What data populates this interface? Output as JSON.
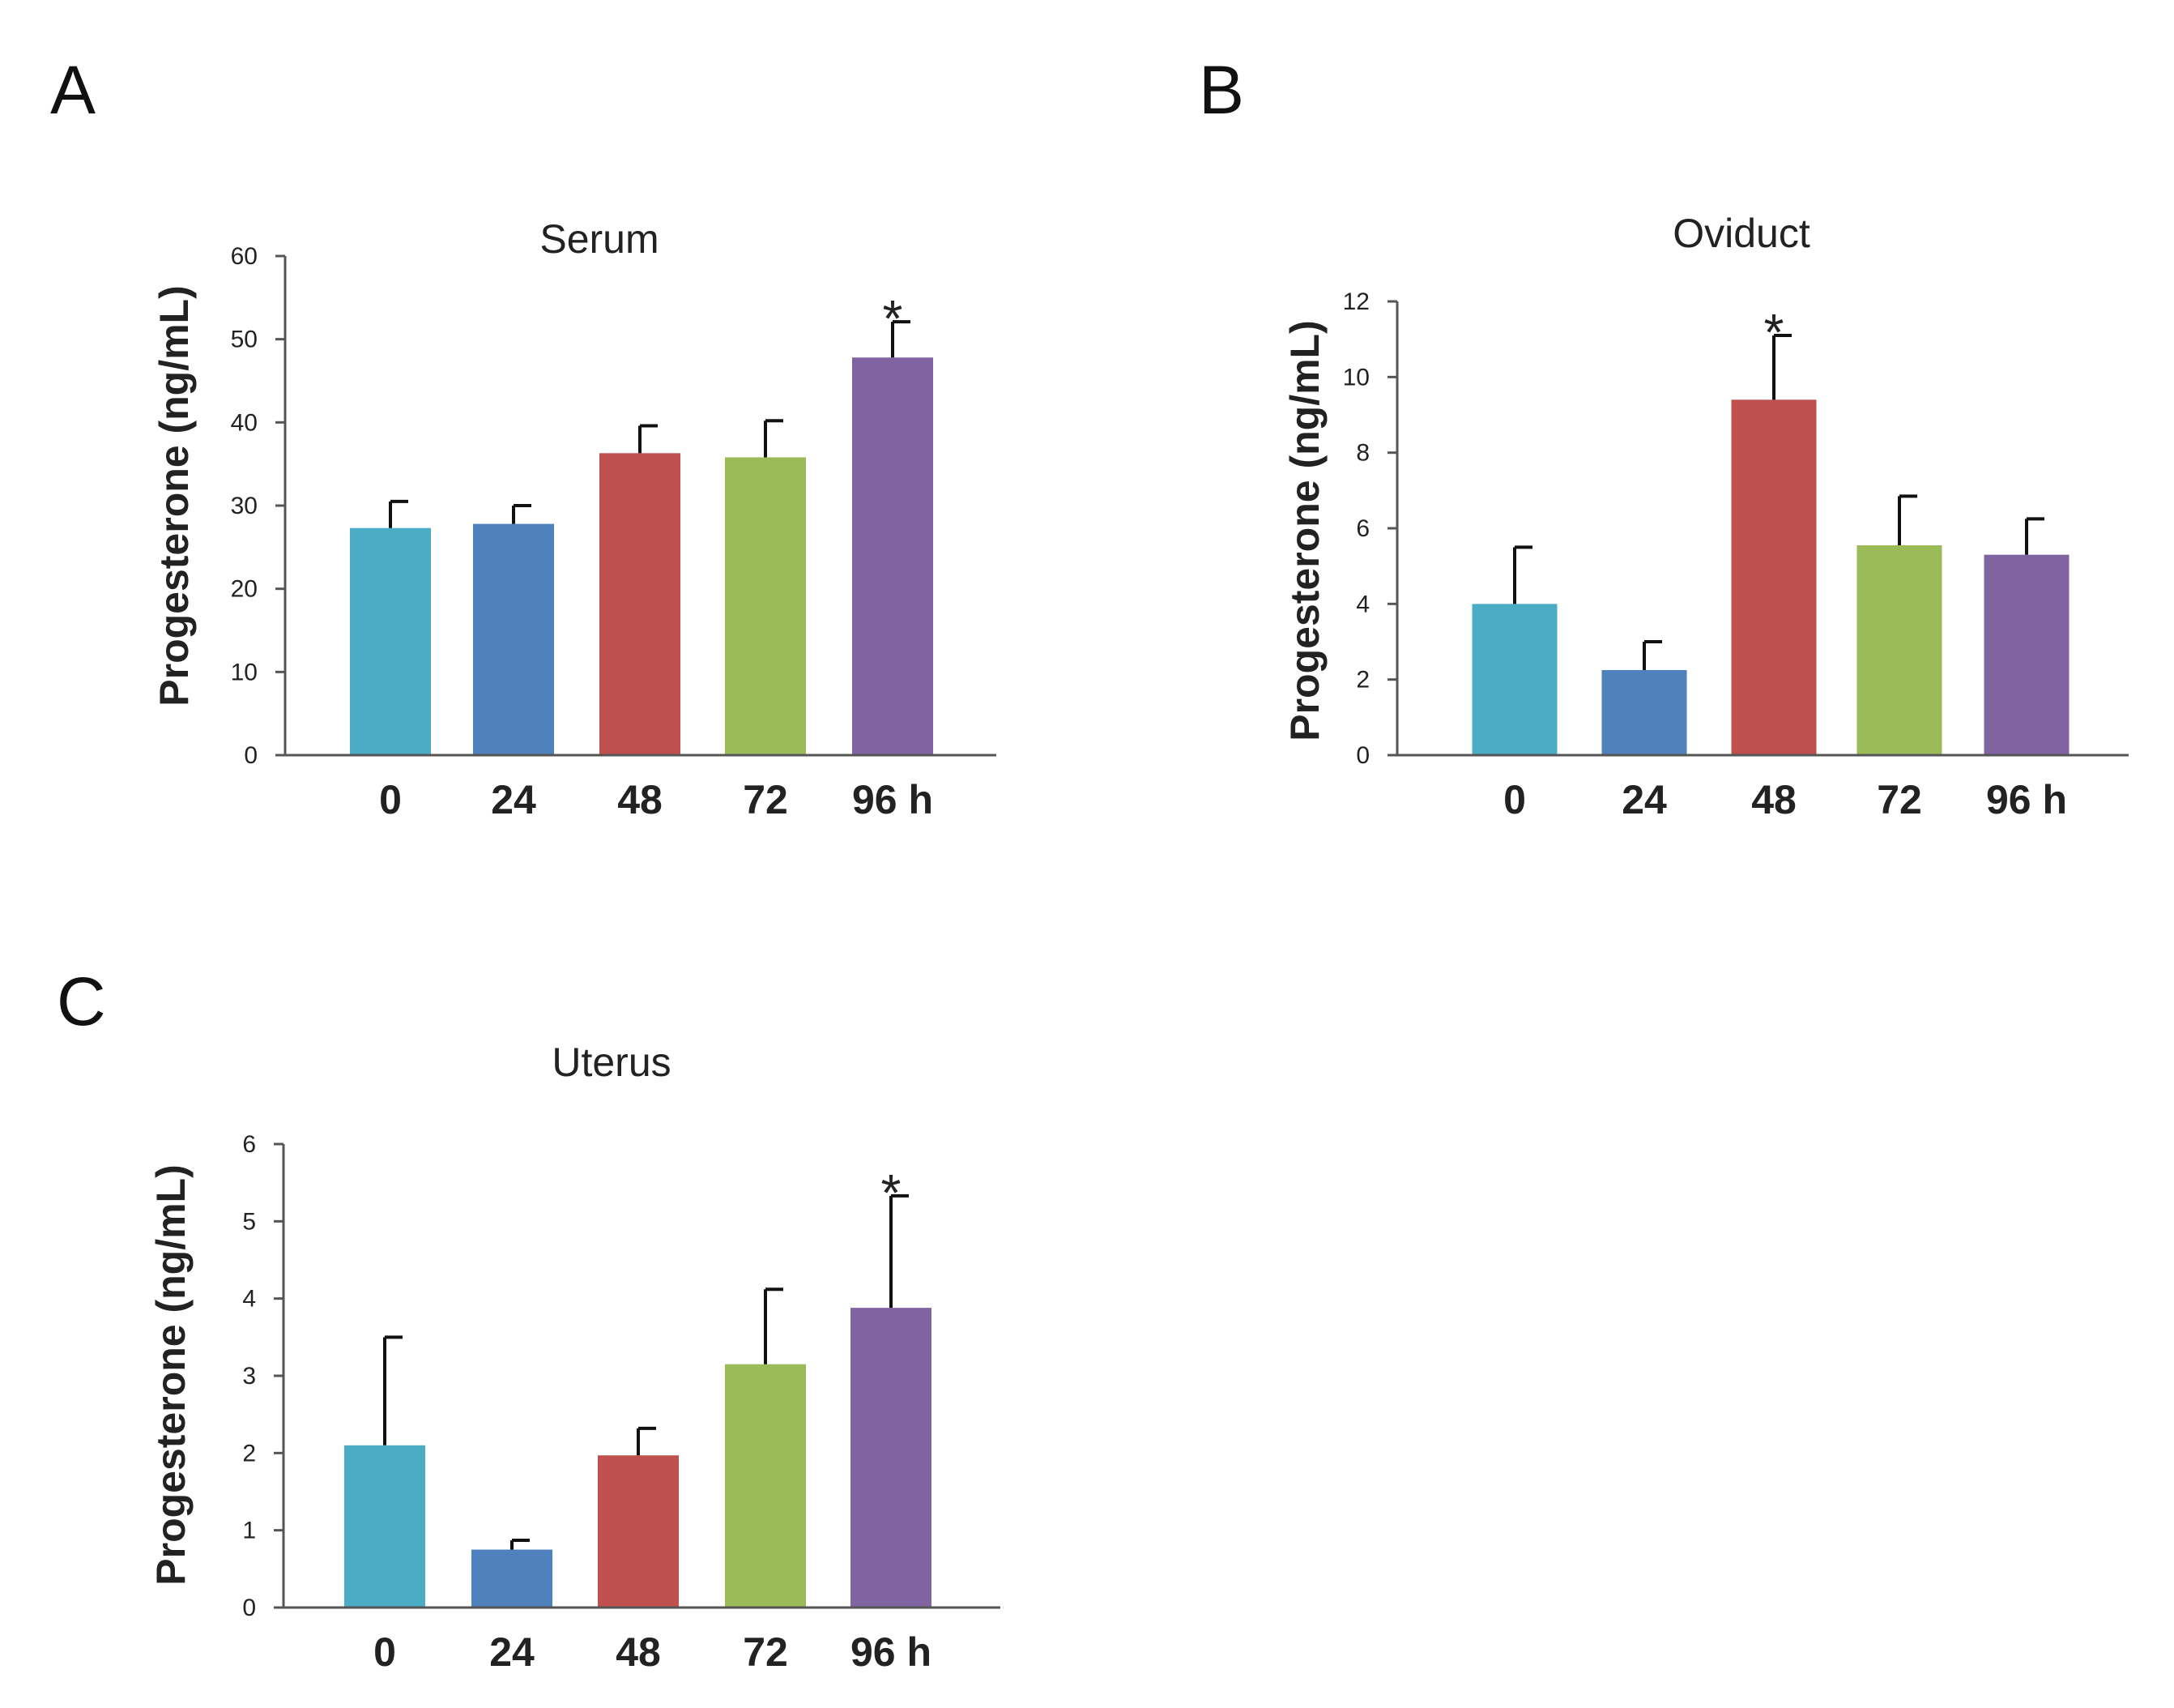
{
  "panel_labels": [
    "A",
    "B",
    "C"
  ],
  "chart_data": [
    {
      "type": "bar",
      "panel": "A",
      "title": "Serum",
      "xlabel": "",
      "ylabel": "Progesterone (ng/mL)",
      "categories": [
        "0",
        "24",
        "48",
        "72",
        "96 h"
      ],
      "values": [
        27.3,
        27.8,
        36.3,
        35.8,
        47.8
      ],
      "errors": [
        3.2,
        2.2,
        3.3,
        4.4,
        4.3
      ],
      "significant": [
        false,
        false,
        false,
        false,
        true
      ],
      "ylim": [
        0,
        60
      ],
      "yticks": [
        0,
        10,
        20,
        30,
        40,
        50,
        60
      ],
      "colors": [
        "#4bacc6",
        "#4f81bd",
        "#c0504d",
        "#9bbb59",
        "#8064a2"
      ]
    },
    {
      "type": "bar",
      "panel": "B",
      "title": "Oviduct",
      "xlabel": "",
      "ylabel": "Progesterone (ng/mL)",
      "categories": [
        "0",
        "24",
        "48",
        "72",
        "96 h"
      ],
      "values": [
        4.0,
        2.25,
        9.4,
        5.55,
        5.3
      ],
      "errors": [
        1.5,
        0.75,
        1.7,
        1.3,
        0.95
      ],
      "significant": [
        false,
        false,
        true,
        false,
        false
      ],
      "ylim": [
        0,
        12
      ],
      "yticks": [
        0,
        2,
        4,
        6,
        8,
        10,
        12
      ],
      "colors": [
        "#4bacc6",
        "#4f81bd",
        "#c0504d",
        "#9bbb59",
        "#8064a2"
      ]
    },
    {
      "type": "bar",
      "panel": "C",
      "title": "Uterus",
      "xlabel": "",
      "ylabel": "Progesterone (ng/mL)",
      "categories": [
        "0",
        "24",
        "48",
        "72",
        "96 h"
      ],
      "values": [
        2.1,
        0.75,
        1.97,
        3.15,
        3.88
      ],
      "errors": [
        1.4,
        0.12,
        0.35,
        0.97,
        1.45
      ],
      "significant": [
        false,
        false,
        false,
        false,
        true
      ],
      "ylim": [
        0,
        6
      ],
      "yticks": [
        0,
        1,
        2,
        3,
        4,
        5,
        6
      ],
      "colors": [
        "#4bacc6",
        "#4f81bd",
        "#c0504d",
        "#9bbb59",
        "#8064a2"
      ]
    }
  ],
  "significance_marker": "*"
}
